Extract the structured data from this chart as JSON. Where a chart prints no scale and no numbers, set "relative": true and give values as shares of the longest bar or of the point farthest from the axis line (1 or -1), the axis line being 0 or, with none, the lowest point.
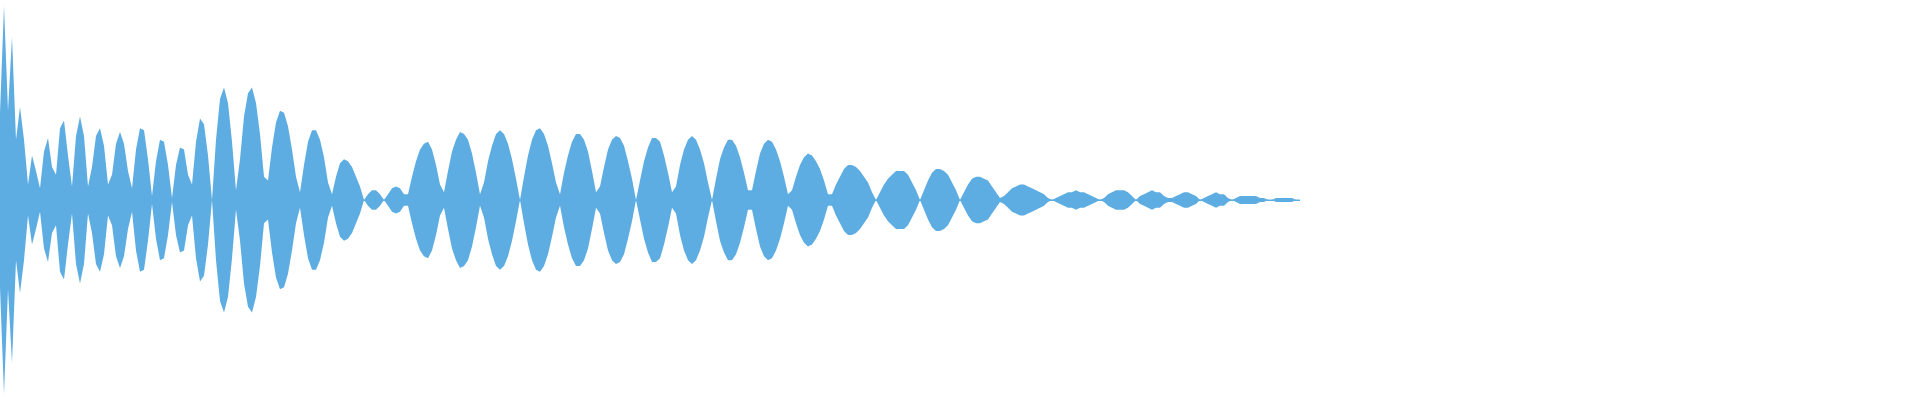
{
  "chart_data": {
    "type": "area",
    "relative": true,
    "ref_lines": [
      {
        "axis": "y",
        "value": 0,
        "color": "#5dade2"
      }
    ],
    "categories": [
      null,
      null,
      null,
      null,
      null,
      null,
      null,
      null,
      null,
      null,
      null,
      null,
      null,
      null,
      null,
      null,
      null,
      null,
      null,
      null,
      null,
      null,
      null,
      null,
      null,
      null,
      null,
      null,
      null,
      null,
      null,
      null,
      null,
      null,
      null,
      null,
      null,
      null,
      null,
      null,
      null,
      null,
      null,
      null,
      null,
      null,
      null,
      null,
      null,
      null,
      null,
      null,
      null,
      null,
      null,
      null,
      null,
      null,
      null,
      null,
      null,
      null,
      null,
      null,
      null,
      null,
      null,
      null,
      null,
      null,
      null,
      null,
      null,
      null,
      null,
      null,
      null,
      null,
      null,
      null,
      null,
      null,
      null,
      null,
      null,
      null,
      null,
      null,
      null,
      null,
      null,
      null,
      null,
      null,
      null,
      null,
      null,
      null,
      null,
      null,
      null,
      null,
      null,
      null,
      null,
      null,
      null,
      null,
      null,
      null,
      null,
      null,
      null,
      null,
      null,
      null,
      null,
      null,
      null,
      null,
      null,
      null,
      null,
      null,
      null,
      null,
      null,
      null,
      null,
      null,
      null,
      null,
      null,
      null,
      null,
      null,
      null,
      null,
      null,
      null,
      null,
      null,
      null,
      null,
      null,
      null,
      null,
      null,
      null,
      null,
      null,
      null,
      null,
      null,
      null,
      null,
      null,
      null,
      null,
      null,
      null,
      null,
      null,
      null,
      null,
      null,
      null,
      null,
      null,
      null,
      null,
      null,
      null,
      null,
      null,
      null,
      null,
      null,
      null,
      null,
      null,
      null,
      null,
      null,
      null,
      null,
      null,
      null,
      null,
      null,
      null,
      null,
      null,
      null,
      null,
      null,
      null,
      null,
      null,
      null,
      null,
      null,
      null,
      null,
      null,
      null,
      null,
      null,
      null,
      null,
      null,
      null,
      null,
      null,
      null,
      null,
      null,
      null,
      null,
      null,
      null,
      null,
      null,
      null,
      null,
      null,
      null,
      null,
      null,
      null,
      null,
      null,
      null,
      null,
      null,
      null,
      null,
      null,
      null,
      null,
      null,
      null,
      null,
      null,
      null,
      null,
      null,
      null,
      null,
      null,
      null,
      null,
      null,
      null,
      null,
      null,
      null,
      null,
      null,
      null,
      null,
      null,
      null,
      null,
      null,
      null,
      null,
      null,
      null,
      null,
      null,
      null,
      null,
      null,
      null,
      null,
      null,
      null,
      null,
      null,
      null,
      null,
      null,
      null,
      null,
      null,
      null,
      null,
      null,
      null,
      null,
      null,
      null,
      null,
      null,
      null,
      null,
      null,
      null,
      null,
      null,
      null,
      null,
      null,
      null,
      null,
      null,
      null,
      null,
      null,
      null,
      null,
      null,
      null,
      null,
      null,
      null,
      null,
      null,
      null,
      null,
      null,
      null,
      null,
      null,
      null
    ],
    "series": [
      {
        "color": "#5dade2",
        "values": [
          0.45,
          1,
          0.46,
          0.84,
          0.31,
          0.48,
          0.31,
          0.08,
          0.23,
          0.15,
          0.06,
          0.25,
          0.32,
          0.17,
          0.13,
          0.37,
          0.41,
          0.23,
          0.07,
          0.33,
          0.43,
          0.33,
          0.07,
          0.17,
          0.33,
          0.37,
          0.28,
          0.08,
          0.13,
          0.29,
          0.35,
          0.29,
          0.15,
          0.06,
          0.26,
          0.37,
          0.36,
          0.21,
          0.02,
          0.2,
          0.31,
          0.3,
          0.18,
          0.01,
          0.18,
          0.27,
          0.26,
          0.13,
          0.08,
          0.3,
          0.42,
          0.39,
          0.23,
          0,
          0.31,
          0.52,
          0.58,
          0.5,
          0.3,
          0.05,
          0.21,
          0.43,
          0.55,
          0.58,
          0.5,
          0.34,
          0.12,
          0.1,
          0.27,
          0.4,
          0.46,
          0.45,
          0.38,
          0.26,
          0.12,
          0.04,
          0.18,
          0.3,
          0.36,
          0.36,
          0.31,
          0.22,
          0.09,
          0.03,
          0.12,
          0.19,
          0.21,
          0.2,
          0.17,
          0.12,
          0.07,
          0,
          0.03,
          0.05,
          0.05,
          0.03,
          0,
          0.03,
          0.06,
          0.07,
          0.06,
          0.03,
          0.03,
          0.12,
          0.2,
          0.26,
          0.29,
          0.3,
          0.26,
          0.18,
          0.08,
          0.04,
          0.15,
          0.25,
          0.31,
          0.35,
          0.34,
          0.31,
          0.24,
          0.14,
          0.03,
          0.09,
          0.2,
          0.28,
          0.34,
          0.36,
          0.34,
          0.29,
          0.21,
          0.11,
          0,
          0.12,
          0.23,
          0.31,
          0.36,
          0.37,
          0.34,
          0.28,
          0.19,
          0.09,
          0.03,
          0.14,
          0.23,
          0.3,
          0.34,
          0.34,
          0.31,
          0.25,
          0.15,
          0.04,
          0.07,
          0.17,
          0.26,
          0.31,
          0.33,
          0.32,
          0.28,
          0.2,
          0.11,
          0,
          0.1,
          0.2,
          0.27,
          0.32,
          0.32,
          0.3,
          0.23,
          0.14,
          0.04,
          0.07,
          0.18,
          0.26,
          0.31,
          0.33,
          0.31,
          0.26,
          0.19,
          0.09,
          0,
          0.11,
          0.21,
          0.27,
          0.31,
          0.31,
          0.28,
          0.22,
          0.14,
          0.05,
          0.05,
          0.15,
          0.24,
          0.29,
          0.31,
          0.3,
          0.26,
          0.2,
          0.12,
          0.03,
          0.05,
          0.12,
          0.18,
          0.22,
          0.24,
          0.23,
          0.2,
          0.16,
          0.1,
          0.03,
          0.03,
          0.08,
          0.12,
          0.16,
          0.18,
          0.18,
          0.17,
          0.15,
          0.12,
          0.09,
          0.04,
          0,
          0.04,
          0.08,
          0.11,
          0.13,
          0.15,
          0.15,
          0.15,
          0.13,
          0.09,
          0.05,
          0,
          0.05,
          0.1,
          0.14,
          0.16,
          0.16,
          0.15,
          0.13,
          0.09,
          0.05,
          0,
          0.04,
          0.08,
          0.11,
          0.12,
          0.12,
          0.11,
          0.1,
          0.07,
          0.04,
          0.01,
          0.02,
          0.04,
          0.06,
          0.07,
          0.08,
          0.08,
          0.07,
          0.06,
          0.05,
          0.04,
          0.03,
          0.01,
          0,
          0.01,
          0.02,
          0.03,
          0.04,
          0.04,
          0.05,
          0.04,
          0.04,
          0.03,
          0.02,
          0.01,
          0,
          0.01,
          0.03,
          0.04,
          0.05,
          0.05,
          0.05,
          0.04,
          0.02,
          0,
          0.02,
          0.03,
          0.04,
          0.05,
          0.04,
          0.04,
          0.02,
          0.01,
          0.01,
          0.02,
          0.03,
          0.04,
          0.04,
          0.03,
          0.02,
          0,
          0.01,
          0.02,
          0.03,
          0.04,
          0.03,
          0.03,
          0.01,
          0,
          0.01,
          0.02,
          0.02,
          0.02,
          0.02,
          0.02,
          0.01,
          0.01,
          0,
          0,
          0.01,
          0.01,
          0.01,
          0.01,
          0.01,
          0,
          0
        ]
      },
      {
        "color": "#5dade3",
        "values": [
          -0.45,
          -1,
          -0.46,
          -0.84,
          -0.31,
          -0.48,
          -0.31,
          -0.08,
          -0.23,
          -0.15,
          -0.06,
          -0.25,
          -0.32,
          -0.17,
          -0.13,
          -0.37,
          -0.41,
          -0.23,
          -0.07,
          -0.33,
          -0.43,
          -0.33,
          -0.07,
          -0.17,
          -0.33,
          -0.37,
          -0.28,
          -0.08,
          -0.13,
          -0.29,
          -0.35,
          -0.29,
          -0.15,
          -0.06,
          -0.26,
          -0.37,
          -0.36,
          -0.21,
          -0.02,
          -0.2,
          -0.31,
          -0.3,
          -0.18,
          -0.01,
          -0.18,
          -0.27,
          -0.26,
          -0.13,
          -0.08,
          -0.3,
          -0.42,
          -0.39,
          -0.23,
          0,
          -0.31,
          -0.52,
          -0.58,
          -0.5,
          -0.3,
          -0.05,
          -0.21,
          -0.43,
          -0.55,
          -0.58,
          -0.5,
          -0.34,
          -0.12,
          -0.1,
          -0.27,
          -0.4,
          -0.46,
          -0.45,
          -0.38,
          -0.26,
          -0.12,
          -0.04,
          -0.18,
          -0.3,
          -0.36,
          -0.36,
          -0.31,
          -0.22,
          -0.09,
          -0.03,
          -0.12,
          -0.19,
          -0.21,
          -0.2,
          -0.17,
          -0.12,
          -0.07,
          0,
          -0.03,
          -0.05,
          -0.05,
          -0.03,
          0,
          -0.03,
          -0.06,
          -0.07,
          -0.06,
          -0.03,
          -0.03,
          -0.12,
          -0.2,
          -0.26,
          -0.29,
          -0.3,
          -0.26,
          -0.18,
          -0.08,
          -0.04,
          -0.15,
          -0.25,
          -0.31,
          -0.35,
          -0.34,
          -0.31,
          -0.24,
          -0.14,
          -0.03,
          -0.09,
          -0.2,
          -0.28,
          -0.34,
          -0.36,
          -0.34,
          -0.29,
          -0.21,
          -0.11,
          0,
          -0.12,
          -0.23,
          -0.31,
          -0.36,
          -0.37,
          -0.34,
          -0.28,
          -0.19,
          -0.09,
          -0.03,
          -0.14,
          -0.23,
          -0.3,
          -0.34,
          -0.34,
          -0.31,
          -0.25,
          -0.15,
          -0.04,
          -0.07,
          -0.17,
          -0.26,
          -0.31,
          -0.33,
          -0.32,
          -0.28,
          -0.2,
          -0.11,
          0,
          -0.1,
          -0.2,
          -0.27,
          -0.32,
          -0.32,
          -0.3,
          -0.23,
          -0.14,
          -0.04,
          -0.07,
          -0.18,
          -0.26,
          -0.31,
          -0.33,
          -0.31,
          -0.26,
          -0.19,
          -0.09,
          0,
          -0.11,
          -0.21,
          -0.27,
          -0.31,
          -0.31,
          -0.28,
          -0.22,
          -0.14,
          -0.05,
          -0.05,
          -0.15,
          -0.24,
          -0.29,
          -0.31,
          -0.3,
          -0.26,
          -0.2,
          -0.12,
          -0.03,
          -0.05,
          -0.12,
          -0.18,
          -0.22,
          -0.24,
          -0.23,
          -0.2,
          -0.16,
          -0.1,
          -0.03,
          -0.03,
          -0.08,
          -0.12,
          -0.16,
          -0.18,
          -0.18,
          -0.17,
          -0.15,
          -0.12,
          -0.09,
          -0.04,
          0,
          -0.04,
          -0.08,
          -0.11,
          -0.13,
          -0.15,
          -0.15,
          -0.15,
          -0.13,
          -0.09,
          -0.05,
          0,
          -0.05,
          -0.1,
          -0.14,
          -0.16,
          -0.16,
          -0.15,
          -0.13,
          -0.09,
          -0.05,
          0,
          -0.04,
          -0.08,
          -0.11,
          -0.12,
          -0.12,
          -0.11,
          -0.1,
          -0.07,
          -0.04,
          -0.01,
          -0.02,
          -0.04,
          -0.06,
          -0.07,
          -0.08,
          -0.08,
          -0.07,
          -0.06,
          -0.05,
          -0.04,
          -0.03,
          -0.01,
          0,
          -0.01,
          -0.02,
          -0.03,
          -0.04,
          -0.04,
          -0.05,
          -0.04,
          -0.04,
          -0.03,
          -0.02,
          -0.01,
          0,
          -0.01,
          -0.03,
          -0.04,
          -0.05,
          -0.05,
          -0.05,
          -0.04,
          -0.02,
          0,
          -0.02,
          -0.03,
          -0.04,
          -0.05,
          -0.04,
          -0.04,
          -0.02,
          -0.01,
          -0.01,
          -0.02,
          -0.03,
          -0.04,
          -0.04,
          -0.03,
          -0.02,
          0,
          -0.01,
          -0.02,
          -0.03,
          -0.04,
          -0.03,
          -0.03,
          -0.01,
          0,
          -0.01,
          -0.02,
          -0.02,
          -0.02,
          -0.02,
          -0.02,
          -0.01,
          -0.01,
          0,
          0,
          -0.01,
          -0.01,
          -0.01,
          -0.01,
          -0.01,
          0,
          0
        ]
      }
    ]
  }
}
